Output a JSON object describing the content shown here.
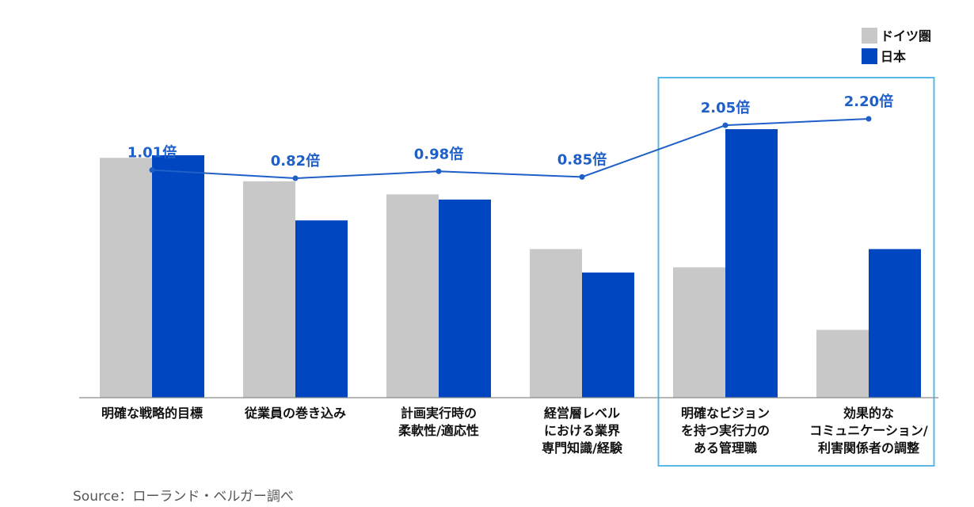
{
  "chart_data": {
    "type": "bar",
    "categories": [
      [
        "明確な戦略的目標"
      ],
      [
        "従業員の巻き込み"
      ],
      [
        "計画実行時の",
        "柔軟性/適応性"
      ],
      [
        "経営層レベル",
        "における業界",
        "専門知識/経験"
      ],
      [
        "明確なビジョン",
        "を持つ実行力の",
        "ある管理職"
      ],
      [
        "効果的な",
        "コミュニケーション/",
        "利害関係者の調整"
      ]
    ],
    "series": [
      {
        "name": "ドイツ圏",
        "color": "#c8c8c8",
        "values": [
          0.92,
          0.83,
          0.78,
          0.57,
          0.5,
          0.26
        ]
      },
      {
        "name": "日本",
        "color": "#0046c0",
        "values": [
          0.93,
          0.68,
          0.76,
          0.48,
          1.03,
          0.57
        ]
      }
    ],
    "ratio_line": {
      "color": "#1f5fc8",
      "labels": [
        "1.01倍",
        "0.82倍",
        "0.98倍",
        "0.85倍",
        "2.05倍",
        "2.20倍"
      ]
    },
    "highlight": {
      "categories": [
        4,
        5
      ],
      "color": "#59b8e6"
    },
    "axis": {
      "baseline_color": "#8c8c8c"
    },
    "legend": {
      "position": "top-right"
    },
    "ylim": [
      0,
      1.1
    ]
  },
  "source": "Source：ローランド・ベルガー調べ"
}
